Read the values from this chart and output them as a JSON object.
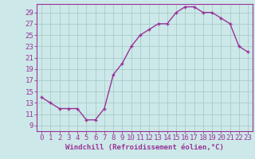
{
  "x": [
    0,
    1,
    2,
    3,
    4,
    5,
    6,
    7,
    8,
    9,
    10,
    11,
    12,
    13,
    14,
    15,
    16,
    17,
    18,
    19,
    20,
    21,
    22,
    23
  ],
  "y": [
    14,
    13,
    12,
    12,
    12,
    10,
    10,
    12,
    18,
    20,
    23,
    25,
    26,
    27,
    27,
    29,
    30,
    30,
    29,
    29,
    28,
    27,
    23,
    22
  ],
  "line_color": "#993399",
  "marker": "+",
  "background_color": "#cce8e8",
  "grid_color": "#aacccc",
  "xlabel": "Windchill (Refroidissement éolien,°C)",
  "xlim": [
    -0.5,
    23.5
  ],
  "ylim": [
    8.0,
    30.5
  ],
  "yticks": [
    9,
    11,
    13,
    15,
    17,
    19,
    21,
    23,
    25,
    27,
    29
  ],
  "xticks": [
    0,
    1,
    2,
    3,
    4,
    5,
    6,
    7,
    8,
    9,
    10,
    11,
    12,
    13,
    14,
    15,
    16,
    17,
    18,
    19,
    20,
    21,
    22,
    23
  ],
  "spine_color": "#993399",
  "tick_color": "#993399",
  "label_color": "#993399",
  "font_size": 6.5,
  "xlabel_size": 6.5
}
